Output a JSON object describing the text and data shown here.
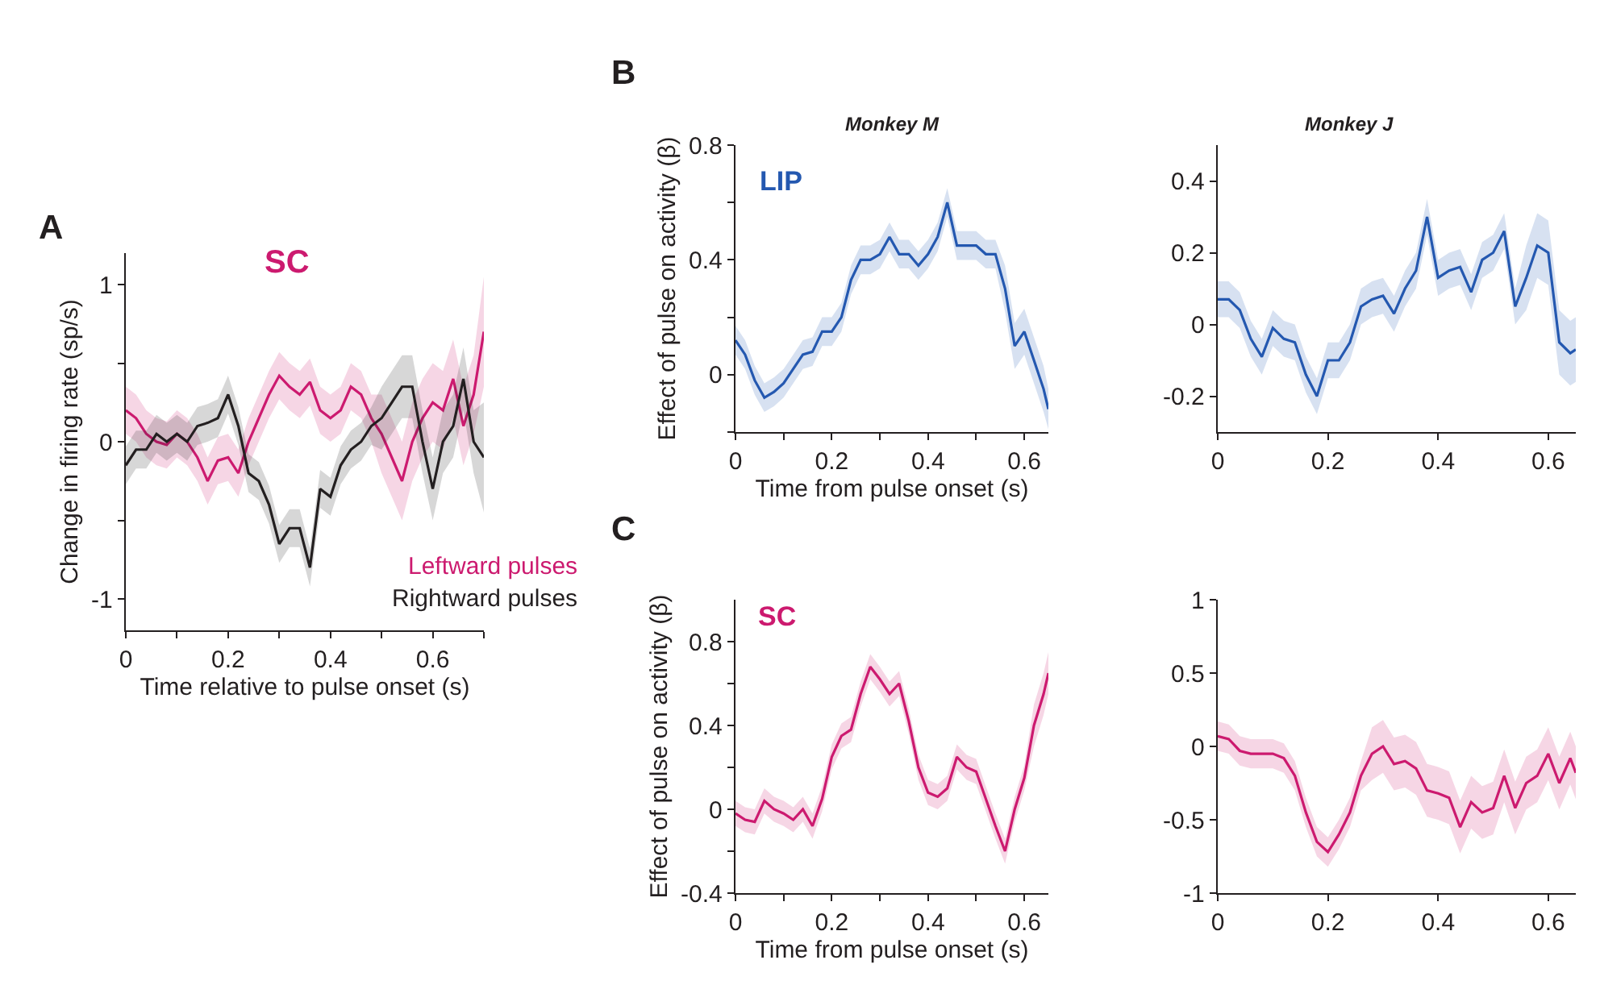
{
  "chart_data": [
    {
      "type": "line",
      "xlabel": "Time relative to pulse onset (s)",
      "ylabel": "Change in firing rate (sp/s)",
      "annotations": [
        "A",
        "SC"
      ],
      "x": [
        0,
        0.02,
        0.04,
        0.06,
        0.08,
        0.1,
        0.12,
        0.14,
        0.16,
        0.18,
        0.2,
        0.22,
        0.24,
        0.26,
        0.28,
        0.3,
        0.32,
        0.34,
        0.36,
        0.38,
        0.4,
        0.42,
        0.44,
        0.46,
        0.48,
        0.5,
        0.52,
        0.54,
        0.56,
        0.58,
        0.6,
        0.62,
        0.64,
        0.66,
        0.68,
        0.7
      ],
      "series": [
        {
          "name": "Leftward pulses",
          "color": "#cc1a6f",
          "values": [
            0.2,
            0.15,
            0.05,
            0.0,
            -0.02,
            0.05,
            0.0,
            -0.1,
            -0.25,
            -0.12,
            -0.1,
            -0.2,
            0.0,
            0.15,
            0.3,
            0.42,
            0.35,
            0.3,
            0.38,
            0.2,
            0.15,
            0.2,
            0.35,
            0.3,
            0.15,
            0.05,
            -0.1,
            -0.25,
            0.0,
            0.15,
            0.25,
            0.2,
            0.4,
            0.1,
            0.3,
            0.7
          ],
          "lower": [
            0.05,
            0,
            -0.1,
            -0.15,
            -0.17,
            -0.1,
            -0.15,
            -0.25,
            -0.4,
            -0.27,
            -0.25,
            -0.35,
            -0.15,
            0,
            0.15,
            0.27,
            0.2,
            0.15,
            0.23,
            0.05,
            0,
            0.05,
            0.2,
            0.15,
            0,
            -0.2,
            -0.35,
            -0.5,
            -0.25,
            -0.1,
            0,
            -0.05,
            0.15,
            -0.15,
            0.05,
            0.35
          ],
          "upper": [
            0.35,
            0.3,
            0.2,
            0.15,
            0.13,
            0.2,
            0.15,
            0.05,
            -0.1,
            0.03,
            0.05,
            -0.05,
            0.15,
            0.3,
            0.45,
            0.57,
            0.5,
            0.45,
            0.53,
            0.35,
            0.3,
            0.35,
            0.5,
            0.45,
            0.3,
            0.3,
            0.15,
            0,
            0.25,
            0.4,
            0.5,
            0.45,
            0.65,
            0.35,
            0.55,
            1.05
          ]
        },
        {
          "name": "Rightward pulses",
          "color": "#231f20",
          "values": [
            -0.15,
            -0.05,
            -0.05,
            0.05,
            0.0,
            0.05,
            0.0,
            0.1,
            0.12,
            0.15,
            0.3,
            0.1,
            -0.2,
            -0.25,
            -0.4,
            -0.65,
            -0.55,
            -0.55,
            -0.8,
            -0.3,
            -0.35,
            -0.15,
            -0.05,
            0.0,
            0.1,
            0.15,
            0.25,
            0.35,
            0.35,
            0.0,
            -0.3,
            0.0,
            0.1,
            0.4,
            0.0,
            -0.1
          ],
          "lower": [
            -0.27,
            -0.17,
            -0.17,
            -0.07,
            -0.12,
            -0.07,
            -0.12,
            -0.02,
            0,
            0.03,
            0.18,
            -0.02,
            -0.32,
            -0.37,
            -0.52,
            -0.77,
            -0.67,
            -0.67,
            -0.92,
            -0.42,
            -0.47,
            -0.27,
            -0.17,
            -0.12,
            -0.02,
            -0.05,
            0.05,
            0.15,
            0.15,
            -0.2,
            -0.5,
            -0.2,
            -0.1,
            0.2,
            -0.2,
            -0.45
          ],
          "upper": [
            -0.03,
            0.07,
            0.07,
            0.17,
            0.12,
            0.17,
            0.12,
            0.22,
            0.24,
            0.27,
            0.42,
            0.22,
            -0.08,
            -0.13,
            -0.28,
            -0.53,
            -0.43,
            -0.43,
            -0.68,
            -0.18,
            -0.23,
            -0.03,
            0.07,
            0.12,
            0.22,
            0.35,
            0.45,
            0.55,
            0.55,
            0.2,
            -0.1,
            0.2,
            0.3,
            0.6,
            0.2,
            0.25
          ]
        }
      ],
      "xlim": [
        0,
        0.7
      ],
      "xticks": [
        0,
        {
          "value": 0.1,
          "label": null
        },
        0.2,
        {
          "value": 0.3,
          "label": null
        },
        0.4,
        {
          "value": 0.5,
          "label": null
        },
        0.6,
        {
          "value": 0.7,
          "label": null
        }
      ],
      "ylim": [
        -1.2,
        1.2
      ],
      "yticks": [
        -1,
        {
          "value": -0.5,
          "label": null
        },
        0,
        {
          "value": 0.5,
          "label": null
        },
        1
      ],
      "legend": false
    },
    {
      "type": "line",
      "title": "Monkey M",
      "xlabel": "Time from pulse onset (s)",
      "ylabel": "Effect of pulse on activity (β)",
      "annotations": [
        "B",
        "LIP"
      ],
      "x": [
        0,
        0.02,
        0.04,
        0.06,
        0.08,
        0.1,
        0.12,
        0.14,
        0.16,
        0.18,
        0.2,
        0.22,
        0.24,
        0.26,
        0.28,
        0.3,
        0.32,
        0.34,
        0.36,
        0.38,
        0.4,
        0.42,
        0.44,
        0.46,
        0.48,
        0.5,
        0.52,
        0.54,
        0.56,
        0.58,
        0.6,
        0.62,
        0.64,
        0.65
      ],
      "series": [
        {
          "color": "#2458b0",
          "values": [
            0.12,
            0.07,
            -0.02,
            -0.08,
            -0.06,
            -0.03,
            0.02,
            0.07,
            0.08,
            0.15,
            0.15,
            0.2,
            0.33,
            0.4,
            0.4,
            0.42,
            0.48,
            0.42,
            0.42,
            0.38,
            0.42,
            0.48,
            0.6,
            0.45,
            0.45,
            0.45,
            0.42,
            0.42,
            0.3,
            0.1,
            0.15,
            0.05,
            -0.05,
            -0.12
          ],
          "lower": [
            0.07,
            0.02,
            -0.07,
            -0.13,
            -0.11,
            -0.08,
            -0.03,
            0.02,
            0.03,
            0.1,
            0.1,
            0.15,
            0.28,
            0.35,
            0.35,
            0.37,
            0.43,
            0.37,
            0.37,
            0.33,
            0.37,
            0.43,
            0.55,
            0.4,
            0.4,
            0.4,
            0.37,
            0.37,
            0.22,
            0.02,
            0.07,
            -0.03,
            -0.13,
            -0.19
          ],
          "upper": [
            0.17,
            0.12,
            0.03,
            -0.03,
            -0.01,
            0.02,
            0.07,
            0.12,
            0.13,
            0.2,
            0.2,
            0.25,
            0.38,
            0.45,
            0.45,
            0.47,
            0.53,
            0.47,
            0.47,
            0.43,
            0.47,
            0.53,
            0.65,
            0.5,
            0.5,
            0.5,
            0.47,
            0.47,
            0.38,
            0.18,
            0.23,
            0.13,
            0.03,
            -0.05
          ]
        }
      ],
      "xlim": [
        0,
        0.65
      ],
      "xticks": [
        0,
        {
          "value": 0.1,
          "label": null
        },
        0.2,
        {
          "value": 0.3,
          "label": null
        },
        0.4,
        {
          "value": 0.5,
          "label": null
        },
        0.6
      ],
      "ylim": [
        -0.2,
        0.8
      ],
      "yticks": [
        {
          "value": -0.2,
          "label": null
        },
        0,
        {
          "value": 0.2,
          "label": null
        },
        0.4,
        {
          "value": 0.6,
          "label": null
        },
        0.8
      ],
      "legend": false
    },
    {
      "type": "line",
      "title": "Monkey J",
      "x": [
        0,
        0.02,
        0.04,
        0.06,
        0.08,
        0.1,
        0.12,
        0.14,
        0.16,
        0.18,
        0.2,
        0.22,
        0.24,
        0.26,
        0.28,
        0.3,
        0.32,
        0.34,
        0.36,
        0.38,
        0.4,
        0.42,
        0.44,
        0.46,
        0.48,
        0.5,
        0.52,
        0.54,
        0.56,
        0.58,
        0.6,
        0.62,
        0.64,
        0.65
      ],
      "series": [
        {
          "color": "#2458b0",
          "values": [
            0.07,
            0.07,
            0.04,
            -0.04,
            -0.09,
            -0.01,
            -0.04,
            -0.05,
            -0.14,
            -0.2,
            -0.1,
            -0.1,
            -0.05,
            0.05,
            0.07,
            0.08,
            0.03,
            0.1,
            0.15,
            0.3,
            0.13,
            0.15,
            0.16,
            0.09,
            0.18,
            0.2,
            0.26,
            0.05,
            0.13,
            0.22,
            0.2,
            -0.05,
            -0.08,
            -0.07
          ],
          "lower": [
            0.02,
            0.02,
            -0.01,
            -0.09,
            -0.14,
            -0.06,
            -0.09,
            -0.1,
            -0.19,
            -0.25,
            -0.15,
            -0.15,
            -0.1,
            0,
            0.02,
            0.03,
            -0.02,
            0.05,
            0.1,
            0.25,
            0.08,
            0.1,
            0.11,
            0.04,
            0.13,
            0.15,
            0.21,
            0,
            0.04,
            0.13,
            0.11,
            -0.14,
            -0.17,
            -0.16
          ],
          "upper": [
            0.12,
            0.12,
            0.09,
            0.01,
            -0.04,
            0.04,
            0.01,
            0,
            -0.09,
            -0.15,
            -0.05,
            -0.05,
            0,
            0.1,
            0.12,
            0.13,
            0.08,
            0.15,
            0.2,
            0.35,
            0.18,
            0.2,
            0.21,
            0.14,
            0.23,
            0.25,
            0.31,
            0.1,
            0.22,
            0.31,
            0.29,
            0.04,
            0.01,
            0.02
          ]
        }
      ],
      "xlim": [
        0,
        0.65
      ],
      "xticks": [
        0,
        0.2,
        0.4,
        0.6
      ],
      "ylim": [
        -0.3,
        0.5
      ],
      "yticks": [
        -0.2,
        0,
        0.2,
        0.4
      ],
      "legend": false
    },
    {
      "type": "line",
      "xlabel": "Time from pulse onset (s)",
      "ylabel": "Effect of pulse on activity (β)",
      "annotations": [
        "C",
        "SC"
      ],
      "x": [
        0,
        0.02,
        0.04,
        0.06,
        0.08,
        0.1,
        0.12,
        0.14,
        0.16,
        0.18,
        0.2,
        0.22,
        0.24,
        0.26,
        0.28,
        0.3,
        0.32,
        0.34,
        0.36,
        0.38,
        0.4,
        0.42,
        0.44,
        0.46,
        0.48,
        0.5,
        0.52,
        0.54,
        0.56,
        0.58,
        0.6,
        0.62,
        0.64,
        0.65
      ],
      "series": [
        {
          "color": "#cc1a6f",
          "values": [
            -0.02,
            -0.05,
            -0.06,
            0.04,
            0.0,
            -0.02,
            -0.05,
            0.0,
            -0.08,
            0.05,
            0.25,
            0.35,
            0.38,
            0.55,
            0.68,
            0.62,
            0.55,
            0.6,
            0.42,
            0.2,
            0.08,
            0.06,
            0.1,
            0.25,
            0.2,
            0.18,
            0.05,
            -0.08,
            -0.2,
            0.0,
            0.15,
            0.4,
            0.55,
            0.65
          ],
          "lower": [
            -0.08,
            -0.11,
            -0.12,
            -0.02,
            -0.06,
            -0.08,
            -0.11,
            -0.06,
            -0.14,
            -0.01,
            0.19,
            0.29,
            0.32,
            0.49,
            0.62,
            0.56,
            0.49,
            0.54,
            0.36,
            0.14,
            0.02,
            0,
            0.04,
            0.19,
            0.14,
            0.12,
            -0.01,
            -0.14,
            -0.26,
            -0.06,
            0.09,
            0.3,
            0.45,
            0.55
          ],
          "upper": [
            0.04,
            0.01,
            0,
            0.1,
            0.06,
            0.04,
            0.01,
            0.06,
            -0.02,
            0.11,
            0.31,
            0.41,
            0.44,
            0.61,
            0.74,
            0.68,
            0.61,
            0.66,
            0.48,
            0.26,
            0.14,
            0.12,
            0.16,
            0.31,
            0.26,
            0.24,
            0.11,
            -0.02,
            -0.14,
            0.06,
            0.21,
            0.5,
            0.65,
            0.75
          ]
        }
      ],
      "xlim": [
        0,
        0.65
      ],
      "xticks": [
        0,
        {
          "value": 0.1,
          "label": null
        },
        0.2,
        {
          "value": 0.3,
          "label": null
        },
        0.4,
        {
          "value": 0.5,
          "label": null
        },
        0.6
      ],
      "ylim": [
        -0.4,
        1.0
      ],
      "yticks": [
        -0.4,
        {
          "value": -0.2,
          "label": null
        },
        0,
        {
          "value": 0.2,
          "label": null
        },
        0.4,
        {
          "value": 0.6,
          "label": null
        },
        0.8
      ],
      "legend": false
    },
    {
      "type": "line",
      "x": [
        0,
        0.02,
        0.04,
        0.06,
        0.08,
        0.1,
        0.12,
        0.14,
        0.16,
        0.18,
        0.2,
        0.22,
        0.24,
        0.26,
        0.28,
        0.3,
        0.32,
        0.34,
        0.36,
        0.38,
        0.4,
        0.42,
        0.44,
        0.46,
        0.48,
        0.5,
        0.52,
        0.54,
        0.56,
        0.58,
        0.6,
        0.62,
        0.64,
        0.65
      ],
      "series": [
        {
          "color": "#cc1a6f",
          "values": [
            0.07,
            0.05,
            -0.03,
            -0.05,
            -0.05,
            -0.05,
            -0.08,
            -0.2,
            -0.45,
            -0.65,
            -0.72,
            -0.6,
            -0.45,
            -0.2,
            -0.05,
            0.0,
            -0.12,
            -0.1,
            -0.15,
            -0.3,
            -0.32,
            -0.35,
            -0.55,
            -0.38,
            -0.45,
            -0.42,
            -0.2,
            -0.42,
            -0.25,
            -0.2,
            -0.05,
            -0.25,
            -0.08,
            -0.18
          ],
          "lower": [
            -0.03,
            -0.05,
            -0.13,
            -0.15,
            -0.15,
            -0.15,
            -0.18,
            -0.3,
            -0.55,
            -0.75,
            -0.82,
            -0.7,
            -0.55,
            -0.3,
            -0.23,
            -0.18,
            -0.3,
            -0.28,
            -0.33,
            -0.48,
            -0.5,
            -0.53,
            -0.73,
            -0.56,
            -0.63,
            -0.6,
            -0.38,
            -0.6,
            -0.43,
            -0.38,
            -0.23,
            -0.43,
            -0.26,
            -0.36
          ],
          "upper": [
            0.17,
            0.15,
            0.07,
            0.05,
            0.05,
            0.05,
            0.02,
            -0.1,
            -0.35,
            -0.55,
            -0.62,
            -0.5,
            -0.35,
            -0.1,
            0.13,
            0.18,
            0.06,
            0.08,
            0.03,
            -0.12,
            -0.14,
            -0.17,
            -0.37,
            -0.2,
            -0.27,
            -0.24,
            -0.02,
            -0.24,
            -0.07,
            -0.02,
            0.13,
            -0.07,
            0.1,
            0.0
          ]
        }
      ],
      "xlim": [
        0,
        0.65
      ],
      "xticks": [
        0,
        0.2,
        0.4,
        0.6
      ],
      "ylim": [
        -1,
        1
      ],
      "yticks": [
        -1,
        -0.5,
        0,
        0.5,
        1
      ],
      "legend": false
    }
  ]
}
